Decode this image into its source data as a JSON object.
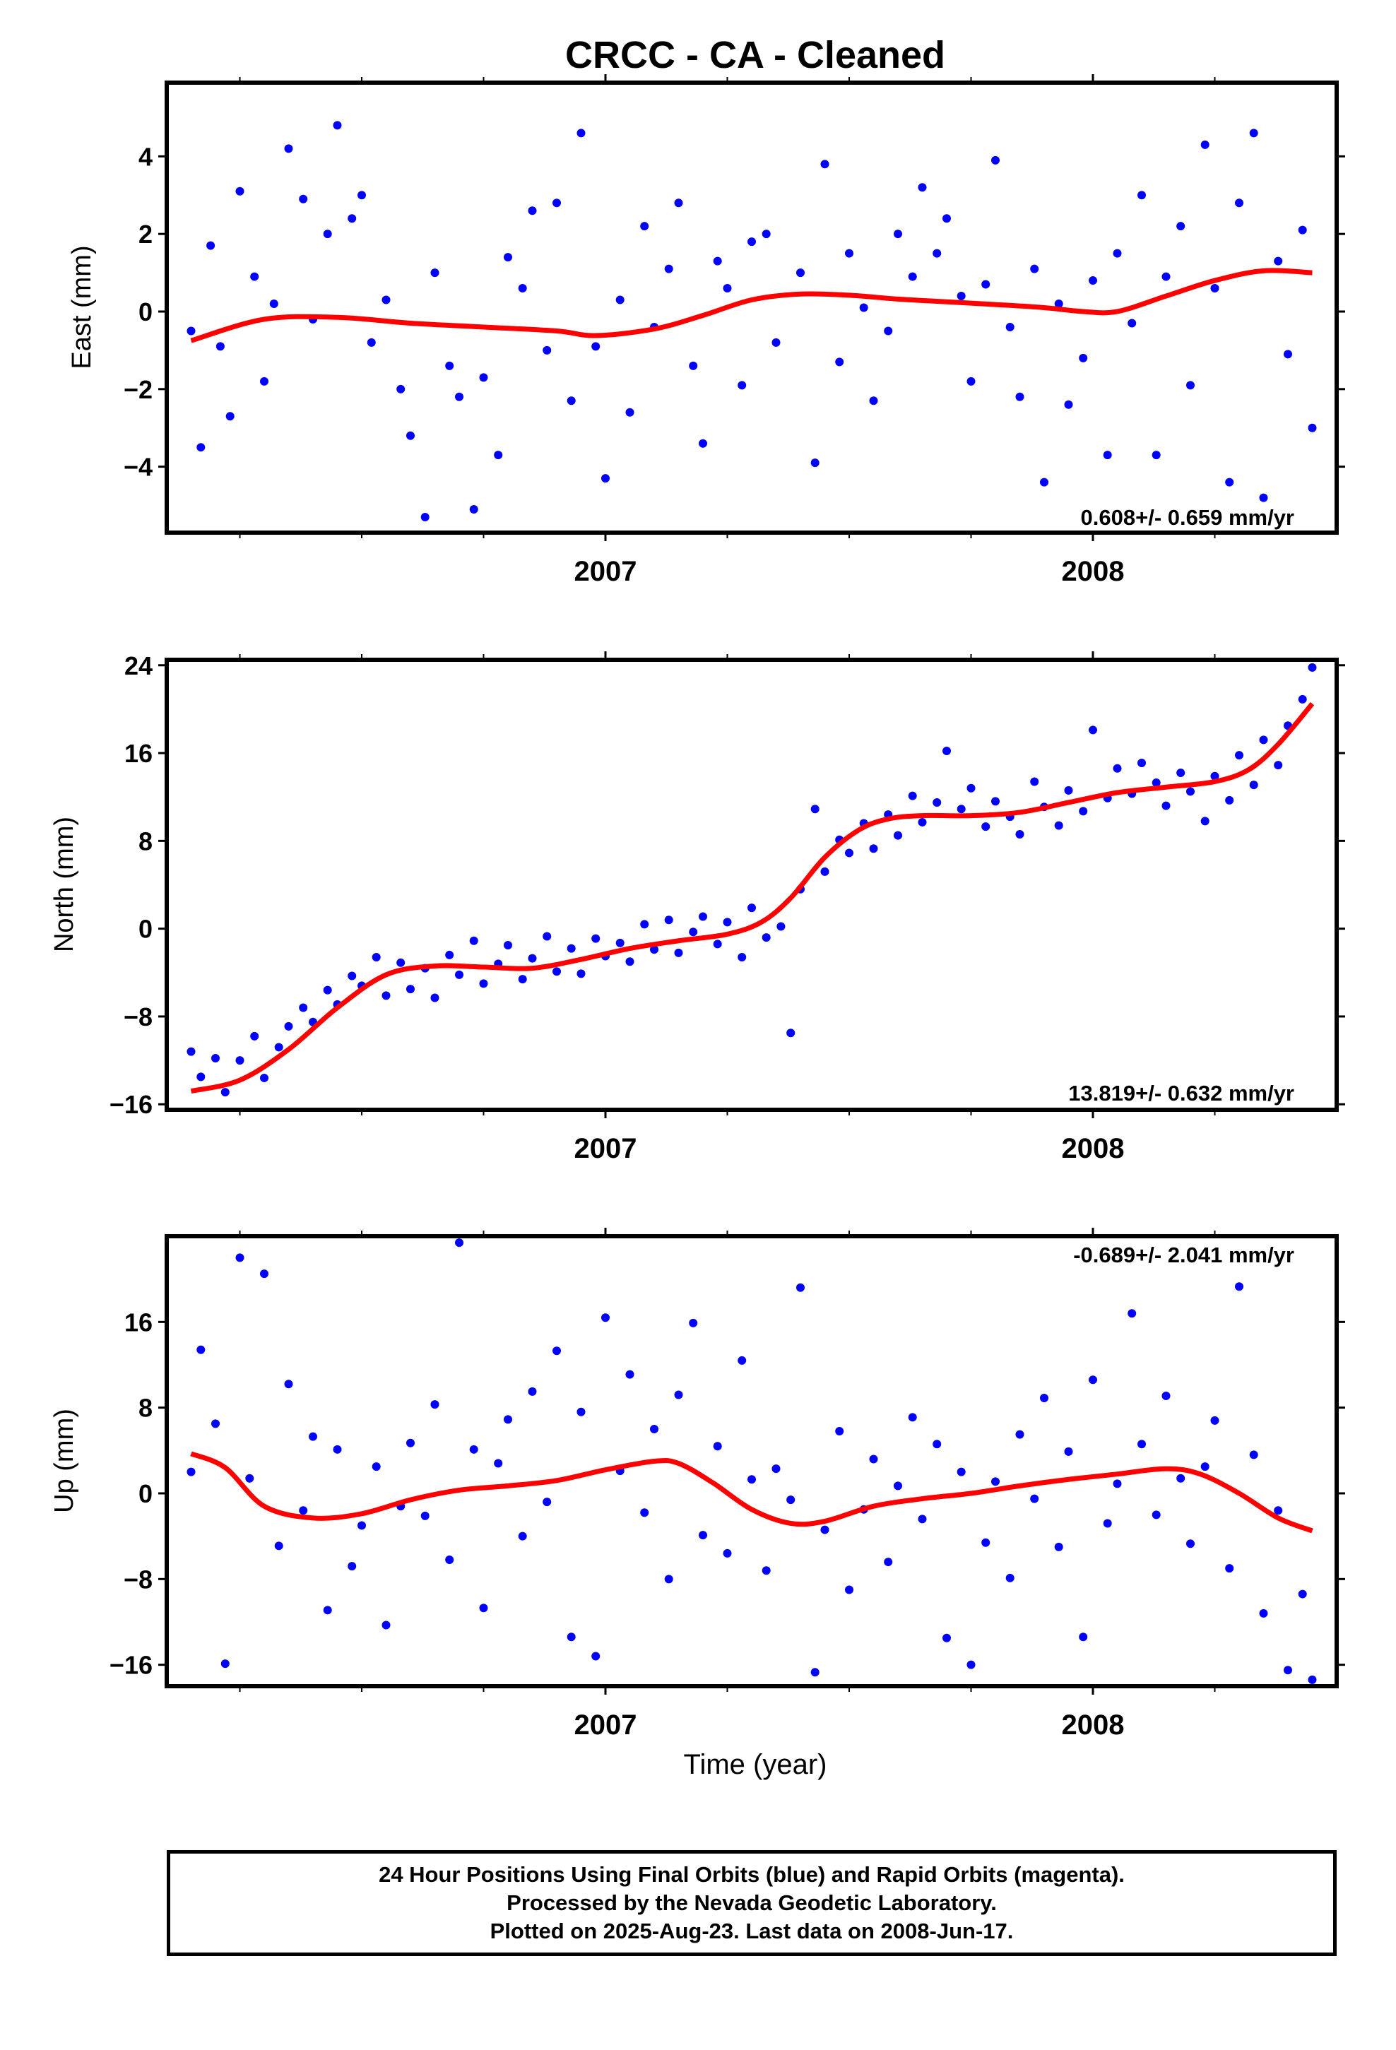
{
  "title": "CRCC  - CA - Cleaned",
  "xlabel": "Time (year)",
  "colors": {
    "points": "#0000ff",
    "fit": "#ff0000",
    "axes": "#000000"
  },
  "footer": [
    "24 Hour Positions Using Final Orbits (blue) and Rapid Orbits (magenta).",
    "Processed by the Nevada Geodetic Laboratory.",
    "Plotted on 2025-Aug-23. Last data on 2008-Jun-17."
  ],
  "chart_data": [
    {
      "type": "scatter",
      "ylabel": "East (mm)",
      "xlim": [
        2006.1,
        2008.5
      ],
      "ylim": [
        -5.7,
        5.9
      ],
      "yticks": [
        -4,
        -2,
        0,
        2,
        4
      ],
      "xticks": [
        2007,
        2008
      ],
      "xtick_labels": [
        "2007",
        "2008"
      ],
      "rate": "0.608+/- 0.659 mm/yr",
      "rate_position": "bottom-right",
      "series": [
        {
          "role": "points",
          "x": [
            2006.15,
            2006.17,
            2006.19,
            2006.21,
            2006.23,
            2006.25,
            2006.28,
            2006.3,
            2006.32,
            2006.35,
            2006.38,
            2006.4,
            2006.43,
            2006.45,
            2006.48,
            2006.5,
            2006.52,
            2006.55,
            2006.58,
            2006.6,
            2006.63,
            2006.65,
            2006.68,
            2006.7,
            2006.73,
            2006.75,
            2006.78,
            2006.8,
            2006.83,
            2006.85,
            2006.88,
            2006.9,
            2006.93,
            2006.95,
            2006.98,
            2007.0,
            2007.03,
            2007.05,
            2007.08,
            2007.1,
            2007.13,
            2007.15,
            2007.18,
            2007.2,
            2007.23,
            2007.25,
            2007.28,
            2007.3,
            2007.33,
            2007.35,
            2007.4,
            2007.43,
            2007.45,
            2007.48,
            2007.5,
            2007.53,
            2007.55,
            2007.58,
            2007.6,
            2007.63,
            2007.65,
            2007.68,
            2007.7,
            2007.73,
            2007.75,
            2007.78,
            2007.8,
            2007.83,
            2007.85,
            2007.88,
            2007.9,
            2007.93,
            2007.95,
            2007.98,
            2008.0,
            2008.03,
            2008.05,
            2008.08,
            2008.1,
            2008.13,
            2008.15,
            2008.18,
            2008.2,
            2008.23,
            2008.25,
            2008.28,
            2008.3,
            2008.33,
            2008.35,
            2008.38,
            2008.4,
            2008.43,
            2008.45
          ],
          "y": [
            -0.5,
            -3.5,
            1.7,
            -0.9,
            -2.7,
            3.1,
            0.9,
            -1.8,
            0.2,
            4.2,
            2.9,
            -0.2,
            2.0,
            4.8,
            2.4,
            3.0,
            -0.8,
            0.3,
            -2.0,
            -3.2,
            -5.3,
            1.0,
            -1.4,
            -2.2,
            -5.1,
            -1.7,
            -3.7,
            1.4,
            0.6,
            2.6,
            -1.0,
            2.8,
            -2.3,
            4.6,
            -0.9,
            -4.3,
            0.3,
            -2.6,
            2.2,
            -0.4,
            1.1,
            2.8,
            -1.4,
            -3.4,
            1.3,
            0.6,
            -1.9,
            1.8,
            2.0,
            -0.8,
            1.0,
            -3.9,
            3.8,
            -1.3,
            1.5,
            0.1,
            -2.3,
            -0.5,
            2.0,
            0.9,
            3.2,
            1.5,
            2.4,
            0.4,
            -1.8,
            0.7,
            3.9,
            -0.4,
            -2.2,
            1.1,
            -4.4,
            0.2,
            -2.4,
            -1.2,
            0.8,
            -3.7,
            1.5,
            -0.3,
            3.0,
            -3.7,
            0.9,
            2.2,
            -1.9,
            4.3,
            0.6,
            -4.4,
            2.8,
            4.6,
            -4.8,
            1.3,
            -1.1,
            2.1,
            -3.0
          ]
        },
        {
          "role": "fit",
          "x": [
            2006.15,
            2006.3,
            2006.45,
            2006.6,
            2006.75,
            2006.9,
            2006.98,
            2007.1,
            2007.2,
            2007.3,
            2007.4,
            2007.5,
            2007.6,
            2007.7,
            2007.8,
            2007.9,
            2007.98,
            2008.05,
            2008.15,
            2008.25,
            2008.35,
            2008.45
          ],
          "y": [
            -0.75,
            -0.2,
            -0.15,
            -0.3,
            -0.4,
            -0.5,
            -0.62,
            -0.45,
            -0.1,
            0.3,
            0.45,
            0.42,
            0.32,
            0.25,
            0.18,
            0.1,
            0.0,
            0.0,
            0.4,
            0.8,
            1.05,
            1.0
          ]
        }
      ]
    },
    {
      "type": "scatter",
      "ylabel": "North (mm)",
      "xlim": [
        2006.1,
        2008.5
      ],
      "ylim": [
        -16.5,
        24.5
      ],
      "yticks": [
        -16,
        -8,
        0,
        8,
        16,
        24
      ],
      "xticks": [
        2007,
        2008
      ],
      "xtick_labels": [
        "2007",
        "2008"
      ],
      "rate": "13.819+/- 0.632 mm/yr",
      "rate_position": "bottom-right",
      "series": [
        {
          "role": "points",
          "x": [
            2006.15,
            2006.17,
            2006.2,
            2006.22,
            2006.25,
            2006.28,
            2006.3,
            2006.33,
            2006.35,
            2006.38,
            2006.4,
            2006.43,
            2006.45,
            2006.48,
            2006.5,
            2006.53,
            2006.55,
            2006.58,
            2006.6,
            2006.63,
            2006.65,
            2006.68,
            2006.7,
            2006.73,
            2006.75,
            2006.78,
            2006.8,
            2006.83,
            2006.85,
            2006.88,
            2006.9,
            2006.93,
            2006.95,
            2006.98,
            2007.0,
            2007.03,
            2007.05,
            2007.08,
            2007.1,
            2007.13,
            2007.15,
            2007.18,
            2007.2,
            2007.23,
            2007.25,
            2007.28,
            2007.3,
            2007.33,
            2007.36,
            2007.38,
            2007.4,
            2007.43,
            2007.45,
            2007.48,
            2007.5,
            2007.53,
            2007.55,
            2007.58,
            2007.6,
            2007.63,
            2007.65,
            2007.68,
            2007.7,
            2007.73,
            2007.75,
            2007.78,
            2007.8,
            2007.83,
            2007.85,
            2007.88,
            2007.9,
            2007.93,
            2007.95,
            2007.98,
            2008.0,
            2008.03,
            2008.05,
            2008.08,
            2008.1,
            2008.13,
            2008.15,
            2008.18,
            2008.2,
            2008.23,
            2008.25,
            2008.28,
            2008.3,
            2008.33,
            2008.35,
            2008.38,
            2008.4,
            2008.43,
            2008.45
          ],
          "y": [
            -11.2,
            -13.5,
            -11.8,
            -14.9,
            -12.0,
            -9.8,
            -13.6,
            -10.8,
            -8.9,
            -7.2,
            -8.5,
            -5.6,
            -6.9,
            -4.3,
            -5.2,
            -2.6,
            -6.1,
            -3.1,
            -5.5,
            -3.6,
            -6.3,
            -2.4,
            -4.2,
            -1.1,
            -5.0,
            -3.2,
            -1.5,
            -4.6,
            -2.7,
            -0.7,
            -3.9,
            -1.8,
            -4.1,
            -0.9,
            -2.5,
            -1.3,
            -3.0,
            0.4,
            -1.9,
            0.8,
            -2.2,
            -0.3,
            1.1,
            -1.4,
            0.6,
            -2.6,
            1.9,
            -0.8,
            0.2,
            -9.5,
            3.6,
            10.9,
            5.2,
            8.1,
            6.9,
            9.6,
            7.3,
            10.4,
            8.5,
            12.1,
            9.7,
            11.5,
            16.2,
            10.9,
            12.8,
            9.3,
            11.6,
            10.2,
            8.6,
            13.4,
            11.1,
            9.4,
            12.6,
            10.7,
            18.1,
            11.9,
            14.6,
            12.3,
            15.1,
            13.3,
            11.2,
            14.2,
            12.5,
            9.8,
            13.9,
            11.7,
            15.8,
            13.1,
            17.2,
            14.9,
            18.5,
            20.9,
            23.8
          ]
        },
        {
          "role": "fit",
          "x": [
            2006.15,
            2006.25,
            2006.35,
            2006.45,
            2006.55,
            2006.65,
            2006.75,
            2006.85,
            2006.95,
            2007.05,
            2007.15,
            2007.25,
            2007.32,
            2007.38,
            2007.45,
            2007.52,
            2007.58,
            2007.65,
            2007.75,
            2007.85,
            2007.95,
            2008.05,
            2008.15,
            2008.25,
            2008.32,
            2008.38,
            2008.45
          ],
          "y": [
            -14.8,
            -13.8,
            -11.0,
            -7.2,
            -4.2,
            -3.4,
            -3.5,
            -3.6,
            -2.8,
            -1.8,
            -1.1,
            -0.5,
            0.6,
            2.8,
            6.5,
            9.0,
            10.0,
            10.3,
            10.3,
            10.6,
            11.5,
            12.4,
            12.9,
            13.4,
            14.5,
            16.8,
            20.5
          ]
        }
      ]
    },
    {
      "type": "scatter",
      "ylabel": "Up (mm)",
      "xlim": [
        2006.1,
        2008.5
      ],
      "ylim": [
        -18,
        24
      ],
      "yticks": [
        -16,
        -8,
        0,
        8,
        16
      ],
      "xticks": [
        2007,
        2008
      ],
      "xtick_labels": [
        "2007",
        "2008"
      ],
      "rate": "-0.689+/- 2.041 mm/yr",
      "rate_position": "top-right",
      "series": [
        {
          "role": "points",
          "x": [
            2006.15,
            2006.17,
            2006.2,
            2006.22,
            2006.25,
            2006.27,
            2006.3,
            2006.33,
            2006.35,
            2006.38,
            2006.4,
            2006.43,
            2006.45,
            2006.48,
            2006.5,
            2006.53,
            2006.55,
            2006.58,
            2006.6,
            2006.63,
            2006.65,
            2006.68,
            2006.7,
            2006.73,
            2006.75,
            2006.78,
            2006.8,
            2006.83,
            2006.85,
            2006.88,
            2006.9,
            2006.93,
            2006.95,
            2006.98,
            2007.0,
            2007.03,
            2007.05,
            2007.08,
            2007.1,
            2007.13,
            2007.15,
            2007.18,
            2007.2,
            2007.23,
            2007.25,
            2007.28,
            2007.3,
            2007.33,
            2007.35,
            2007.38,
            2007.4,
            2007.43,
            2007.45,
            2007.48,
            2007.5,
            2007.53,
            2007.55,
            2007.58,
            2007.6,
            2007.63,
            2007.65,
            2007.68,
            2007.7,
            2007.73,
            2007.75,
            2007.78,
            2007.8,
            2007.83,
            2007.85,
            2007.88,
            2007.9,
            2007.93,
            2007.95,
            2007.98,
            2008.0,
            2008.03,
            2008.05,
            2008.08,
            2008.1,
            2008.13,
            2008.15,
            2008.18,
            2008.2,
            2008.23,
            2008.25,
            2008.28,
            2008.3,
            2008.33,
            2008.35,
            2008.38,
            2008.4,
            2008.43,
            2008.45
          ],
          "y": [
            2.0,
            13.4,
            6.5,
            -15.9,
            22.0,
            1.4,
            20.5,
            -4.9,
            10.2,
            -1.6,
            5.3,
            -10.9,
            4.1,
            -6.8,
            -3.0,
            2.5,
            -12.3,
            -1.2,
            4.7,
            -2.1,
            8.3,
            -6.2,
            23.4,
            4.1,
            -10.7,
            2.8,
            6.9,
            -4.0,
            9.5,
            -0.8,
            13.3,
            -13.4,
            7.6,
            -15.2,
            16.4,
            2.1,
            11.1,
            -1.8,
            6.0,
            -8.0,
            9.2,
            15.9,
            -3.9,
            4.4,
            -5.6,
            12.4,
            1.3,
            -7.2,
            2.3,
            -0.6,
            19.2,
            -16.7,
            -3.4,
            5.8,
            -9.0,
            -1.5,
            3.2,
            -6.4,
            0.7,
            7.1,
            -2.4,
            4.6,
            -13.5,
            2.0,
            -16.0,
            -4.6,
            1.1,
            -7.9,
            5.5,
            -0.5,
            8.9,
            -5.0,
            3.9,
            -13.4,
            10.6,
            -2.8,
            0.9,
            16.8,
            4.6,
            -2.0,
            9.1,
            1.4,
            -4.7,
            2.5,
            6.8,
            -7.0,
            19.3,
            3.6,
            -11.2,
            -1.6,
            -16.5,
            -9.4,
            -17.4
          ]
        },
        {
          "role": "fit",
          "x": [
            2006.15,
            2006.22,
            2006.3,
            2006.4,
            2006.5,
            2006.6,
            2006.7,
            2006.8,
            2006.9,
            2007.0,
            2007.1,
            2007.15,
            2007.22,
            2007.3,
            2007.38,
            2007.45,
            2007.55,
            2007.65,
            2007.75,
            2007.85,
            2007.95,
            2008.05,
            2008.15,
            2008.22,
            2008.3,
            2008.38,
            2008.45
          ],
          "y": [
            3.7,
            2.4,
            -1.2,
            -2.3,
            -1.9,
            -0.6,
            0.3,
            0.7,
            1.2,
            2.2,
            3.0,
            2.8,
            1.0,
            -1.5,
            -2.8,
            -2.6,
            -1.2,
            -0.5,
            0.0,
            0.7,
            1.3,
            1.8,
            2.3,
            1.8,
            0.0,
            -2.3,
            -3.5
          ]
        }
      ]
    }
  ]
}
